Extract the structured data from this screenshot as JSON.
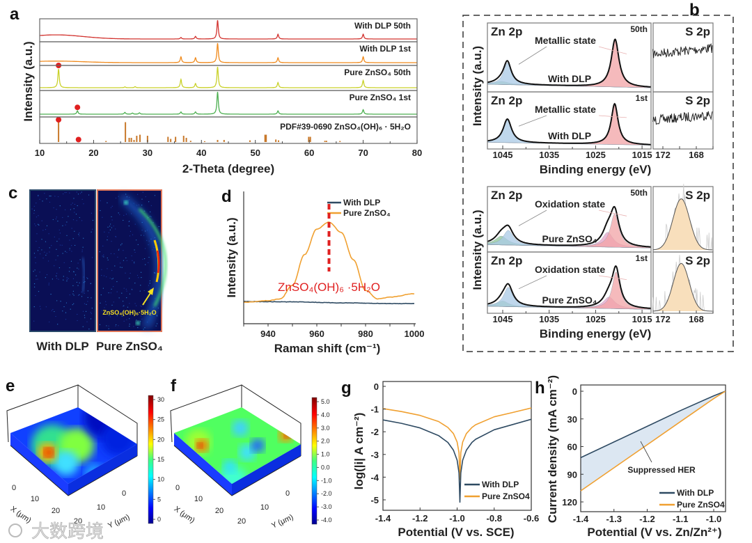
{
  "watermark": "大数跨境",
  "panel_letters": [
    "a",
    "b",
    "c",
    "d",
    "e",
    "f",
    "g",
    "h"
  ],
  "chart_data": [
    {
      "panel": "a",
      "type": "line",
      "xlabel": "2-Theta (degree)",
      "ylabel": "Intensity (a.u.)",
      "xlim": [
        10,
        80
      ],
      "xticks": [
        "10",
        "20",
        "30",
        "40",
        "50",
        "60",
        "70",
        "80"
      ],
      "series": [
        {
          "name": "With DLP 50th",
          "color": "#d2332f",
          "hump": [
            13,
            0.22,
            5
          ],
          "peaks": [
            [
              36.2,
              0.08
            ],
            [
              38.9,
              0.14
            ],
            [
              43.0,
              1.0
            ],
            [
              54.2,
              0.25
            ],
            [
              70.0,
              0.25
            ]
          ],
          "markers": []
        },
        {
          "name": "With DLP 1st",
          "color": "#f08a1c",
          "hump": [
            13,
            0.08,
            5
          ],
          "peaks": [
            [
              36.2,
              0.3
            ],
            [
              38.9,
              0.25
            ],
            [
              43.0,
              1.0
            ],
            [
              54.2,
              0.25
            ],
            [
              70.0,
              0.3
            ]
          ],
          "markers": []
        },
        {
          "name": "Pure ZnSO₄ 50th",
          "color": "#c9d12a",
          "hump": [
            13,
            0.0,
            5
          ],
          "peaks": [
            [
              13.5,
              0.9
            ],
            [
              25.8,
              0.04
            ],
            [
              27.7,
              0.05
            ],
            [
              36.2,
              0.4
            ],
            [
              38.9,
              0.2
            ],
            [
              43.0,
              1.0
            ],
            [
              54.2,
              0.25
            ],
            [
              70.0,
              0.35
            ]
          ],
          "markers": [
            13.5
          ]
        },
        {
          "name": "Pure ZnSO₄ 1st",
          "color": "#4caf50",
          "hump": [
            13,
            0.0,
            5
          ],
          "peaks": [
            [
              17.0,
              0.15
            ],
            [
              25.8,
              0.08
            ],
            [
              27.2,
              0.05
            ],
            [
              28.5,
              0.06
            ],
            [
              36.2,
              0.1
            ],
            [
              38.9,
              0.1
            ],
            [
              43.0,
              1.0
            ],
            [
              54.2,
              0.15
            ],
            [
              70.0,
              0.2
            ]
          ],
          "markers": [
            17.0
          ]
        }
      ],
      "reference": {
        "name": "PDF#39-0690 ZnSO₄(OH)₆ · 5H₂O",
        "color": "#c8782a",
        "sticks": [
          [
            13.5,
            1
          ],
          [
            17.2,
            0.05
          ],
          [
            22.3,
            0.05
          ],
          [
            25.9,
            0.95
          ],
          [
            26.6,
            0.2
          ],
          [
            27.0,
            0.2
          ],
          [
            27.5,
            0.1
          ],
          [
            28.0,
            0.3
          ],
          [
            28.6,
            0.35
          ],
          [
            30.0,
            0.3
          ],
          [
            33.8,
            0.25
          ],
          [
            34.3,
            0.15
          ],
          [
            35.2,
            0.25
          ],
          [
            36.7,
            0.3
          ],
          [
            37.2,
            0.2
          ],
          [
            38.0,
            0.06
          ],
          [
            40.6,
            0.04
          ],
          [
            43.0,
            0.1
          ],
          [
            44.2,
            0.1
          ],
          [
            49.0,
            0.08
          ],
          [
            51.8,
            0.35
          ],
          [
            52.0,
            0.35
          ],
          [
            53.8,
            0.12
          ],
          [
            54.3,
            0.08
          ],
          [
            59.9,
            0.25
          ],
          [
            60.2,
            0.25
          ],
          [
            62.9,
            0.06
          ],
          [
            63.2,
            0.06
          ],
          [
            65.7,
            0.05
          ]
        ],
        "markers": [
          13.5,
          17.2
        ]
      },
      "marker_color": "#e02020"
    },
    {
      "panel": "b-top",
      "type": "area",
      "xlabel": "Binding energy (eV)",
      "ylabel": "Intensity (a.u.)",
      "zn_xticks": [
        "1045",
        "1035",
        "1025",
        "1015"
      ],
      "s_xticks": [
        "172",
        "168"
      ],
      "rows": [
        {
          "cycle": "50th",
          "zn_title": "Zn 2p",
          "annotation": "Metallic state",
          "sample": "With DLP",
          "components": [
            [
              1045.2,
              0.06,
              1.8,
              "#9fd0a5"
            ],
            [
              1044.0,
              0.42,
              1.0,
              "#a9c9e6"
            ],
            [
              1020.8,
              0.92,
              1.0,
              "#f2a3a5"
            ]
          ],
          "s_title": "S 2p",
          "s_signal": {
            "kind": "noise",
            "level": 0.55
          }
        },
        {
          "cycle": "1st",
          "zn_title": "Zn 2p",
          "annotation": "Metallic state",
          "sample": "With DLP",
          "components": [
            [
              1044.0,
              0.55,
              1.1,
              "#a9c9e6"
            ],
            [
              1020.9,
              0.95,
              0.9,
              "#f2a3a5"
            ]
          ],
          "s_title": "S 2p",
          "s_signal": {
            "kind": "noise",
            "level": 0.5
          }
        }
      ]
    },
    {
      "panel": "b-bottom",
      "type": "area",
      "xlabel": "Binding energy (eV)",
      "ylabel": "Intensity (a.u.)",
      "zn_xticks": [
        "1045",
        "1035",
        "1025",
        "1015"
      ],
      "s_xticks": [
        "172",
        "168"
      ],
      "rows": [
        {
          "cycle": "50th",
          "zn_title": "Zn 2p",
          "annotation": "Oxidation state",
          "sample": "Pure ZnSO₄",
          "components": [
            [
              1045.3,
              0.18,
              1.6,
              "#8fc79a"
            ],
            [
              1043.8,
              0.3,
              1.3,
              "#a9c9e6"
            ],
            [
              1022.4,
              0.3,
              1.4,
              "#e7a3c8"
            ],
            [
              1020.9,
              0.68,
              1.1,
              "#f2a3a5"
            ]
          ],
          "s_title": "S 2p",
          "s_signal": {
            "kind": "peak",
            "center": 169.8,
            "height": 0.78,
            "sigma": 1.0,
            "color": "#f7d9b0"
          }
        },
        {
          "cycle": "1st",
          "zn_title": "Zn 2p",
          "annotation": "Oxidation state",
          "sample": "Pure ZnSO₄",
          "components": [
            [
              1045.0,
              0.12,
              1.5,
              "#8fc79a"
            ],
            [
              1043.8,
              0.42,
              1.2,
              "#a9c9e6"
            ],
            [
              1022.1,
              0.25,
              1.5,
              "#e7a3c8"
            ],
            [
              1020.6,
              0.8,
              1.0,
              "#f2a3a5"
            ]
          ],
          "s_title": "S 2p",
          "s_signal": {
            "kind": "peak",
            "center": 169.8,
            "height": 0.78,
            "sigma": 0.95,
            "color": "#f7d9b0"
          }
        }
      ]
    },
    {
      "panel": "c",
      "type": "image",
      "images": [
        {
          "label": "With DLP",
          "border": "#2a4a6a"
        },
        {
          "label": "Pure ZnSO₄",
          "border": "#e0785a",
          "annotation": "ZnSO₄(OH)₆·5H₂O"
        }
      ]
    },
    {
      "panel": "d",
      "type": "line",
      "xlabel": "Raman shift (cm⁻¹)",
      "ylabel": "Intensity (a.u.)",
      "xlim": [
        930,
        1000
      ],
      "xticks": [
        "940",
        "960",
        "980",
        "1000"
      ],
      "series": [
        {
          "name": "With DLP",
          "color": "#2e4a62",
          "x": [
            930,
            950,
            970,
            990,
            1000
          ],
          "y": [
            0.02,
            0.018,
            0.012,
            0.008,
            0.008
          ]
        },
        {
          "name": "Pure ZnSO₄",
          "color": "#f0a030",
          "x": [
            930,
            940,
            945,
            950,
            955,
            960,
            965,
            970,
            975,
            980,
            985,
            990,
            1000
          ],
          "y": [
            0.35,
            0.36,
            0.37,
            0.45,
            0.63,
            0.78,
            0.82,
            0.76,
            0.6,
            0.42,
            0.37,
            0.38,
            0.4
          ]
        }
      ],
      "marker_line": {
        "x": 965,
        "color": "#e02020"
      },
      "annotation": "ZnSO₄(OH)₆ ·5H₂O"
    },
    {
      "panel": "e",
      "type": "surface",
      "xlabel": "X (μm)",
      "ylabel": "Y (μm)",
      "xticks": [
        "0",
        "10",
        "20"
      ],
      "yticks": [
        "0",
        "10",
        "20"
      ],
      "colorbar": {
        "min": 0,
        "max": 31,
        "ticks": [
          "0",
          "5",
          "10",
          "15",
          "20",
          "25",
          "30"
        ]
      }
    },
    {
      "panel": "f",
      "type": "surface",
      "xlabel": "X (μm)",
      "ylabel": "Y (μm)",
      "xticks": [
        "0",
        "10",
        "20"
      ],
      "yticks": [
        "0",
        "10",
        "20"
      ],
      "colorbar": {
        "min": -4.2,
        "max": 5.3,
        "ticks": [
          "-4.0",
          "-3.0",
          "-2.0",
          "-1.0",
          "0.0",
          "1.0",
          "2.0",
          "3.0",
          "4.0",
          "5.0"
        ]
      }
    },
    {
      "panel": "g",
      "type": "line",
      "xlabel": "Potential (V vs. SCE)",
      "ylabel": "log(|i| A cm⁻²)",
      "xlim": [
        -1.4,
        -0.6
      ],
      "ylim": [
        -5.5,
        0
      ],
      "xticks": [
        "-1.4",
        "-1.2",
        "-1.0",
        "-0.8",
        "-0.6"
      ],
      "yticks": [
        "0",
        "-1",
        "-2",
        "-3",
        "-4",
        "-5"
      ],
      "x": [
        -1.4,
        -1.3,
        -1.2,
        -1.1,
        -1.05,
        -1.02,
        -1.0,
        -0.99,
        -0.985,
        -0.98,
        -0.97,
        -0.95,
        -0.92,
        -0.9,
        -0.8,
        -0.7,
        -0.6
      ],
      "series": [
        {
          "name": "With DLP",
          "color": "#2e4a62",
          "y": [
            -1.48,
            -1.63,
            -1.83,
            -2.17,
            -2.47,
            -2.81,
            -3.25,
            -3.81,
            -5.1,
            -3.81,
            -3.25,
            -2.81,
            -2.47,
            -2.33,
            -1.91,
            -1.68,
            -1.45
          ]
        },
        {
          "name": "Pure ZnSO4",
          "color": "#f0a030",
          "y": [
            -0.98,
            -1.11,
            -1.28,
            -1.55,
            -1.81,
            -2.08,
            -2.45,
            -2.92,
            -4.1,
            -2.92,
            -2.45,
            -2.08,
            -1.81,
            -1.69,
            -1.34,
            -1.15,
            -0.95
          ]
        }
      ]
    },
    {
      "panel": "h",
      "type": "line",
      "xlabel": "Potential (V vs. Zn/Zn²⁺)",
      "ylabel": "Current density (mA cm⁻²)",
      "xlim": [
        -1.4,
        -0.965
      ],
      "ylim": [
        130,
        -5
      ],
      "xticks": [
        "-1.4",
        "-1.3",
        "-1.2",
        "-1.1",
        "-1.0"
      ],
      "yticks": [
        "0",
        "30",
        "60",
        "90",
        "120"
      ],
      "x": [
        -1.4,
        -1.3,
        -1.2,
        -1.1,
        -1.0,
        -0.965
      ],
      "series": [
        {
          "name": "With DLP",
          "color": "#2e4a62",
          "y": [
            72,
            55,
            38,
            21,
            5,
            0
          ]
        },
        {
          "name": "Pure ZnSO4",
          "color": "#f0a030",
          "y": [
            108,
            83,
            58,
            33,
            8,
            0
          ]
        }
      ],
      "fill_between_color": "#dce7f2",
      "annotation": "Suppressed HER"
    }
  ]
}
